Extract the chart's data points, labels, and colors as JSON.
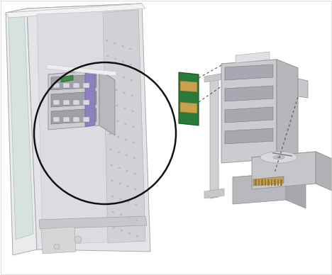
{
  "figure_width": 4.68,
  "figure_height": 3.88,
  "dpi": 100,
  "bg_color": "#ffffff",
  "border_color": "#cccccc",
  "gray_light": "#e8e8ea",
  "gray_mid": "#d0d0d4",
  "gray_dark": "#b8b8bc",
  "gray_darker": "#a0a0a4",
  "gray_face": "#c8c8cc",
  "white_ish": "#f0f0f2",
  "glass_color": "#c8dcd6",
  "purple": "#9080c0",
  "purple_dark": "#7060a8",
  "green_pcb": "#2a7a3a",
  "gold": "#c8a050",
  "circle_color": "#111111",
  "dash_color": "#555555"
}
